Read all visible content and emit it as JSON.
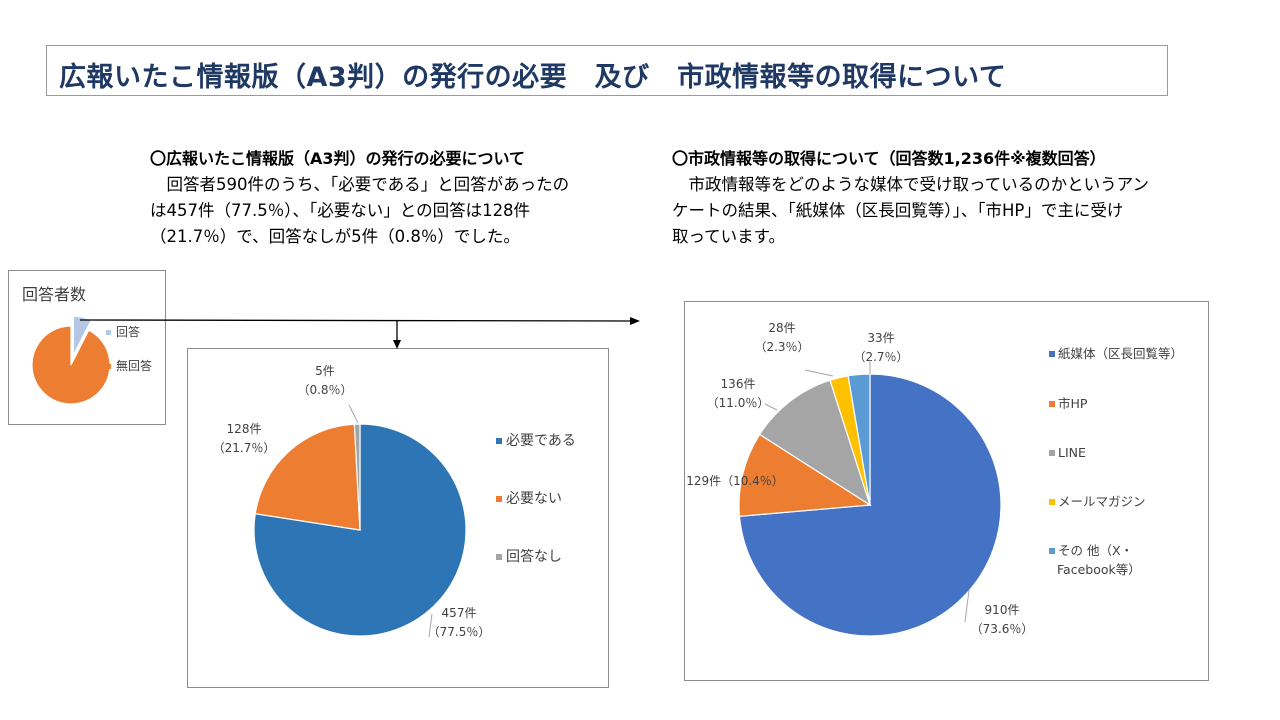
{
  "title": "広報いたこ情報版（A3判）の発行の必要　及び　市政情報等の取得について",
  "left_text": {
    "heading": "〇広報いたこ情報版（A3判）の発行の必要について",
    "lines": [
      "　回答者590件のうち、「必要である」と回答があったの",
      "は457件（77.5％）、「必要ない」との回答は128件",
      "（21.7％）で、回答なしが5件（0.8％）でした。"
    ]
  },
  "right_text": {
    "heading": "〇市政情報等の取得について（回答数1,236件※複数回答）",
    "lines": [
      "　市政情報等をどのような媒体で受け取っているのかというアン",
      "ケートの結果、「紙媒体（区長回覧等）」、「市HP」で主に受け",
      "取っています。"
    ]
  },
  "chart_data": [
    {
      "type": "pie",
      "title": "回答者数",
      "series": [
        {
          "name": "回答",
          "value": 590,
          "color": "#b4c7e7",
          "exploded": true
        },
        {
          "name": "無回答",
          "value": 7280,
          "color": "#ed7d31"
        }
      ]
    },
    {
      "type": "pie",
      "title": "",
      "series": [
        {
          "name": "必要である",
          "value": 457,
          "color": "#2e75b6",
          "label_lines": [
            "457件",
            "（77.5％）"
          ]
        },
        {
          "name": "必要ない",
          "value": 128,
          "color": "#ed7d31",
          "label_lines": [
            "128件",
            "（21.7％）"
          ]
        },
        {
          "name": "回答なし",
          "value": 5,
          "color": "#a5a5a5",
          "label_lines": [
            "5件",
            "（0.8％）"
          ]
        }
      ],
      "legend": "right"
    },
    {
      "type": "pie",
      "title": "",
      "series": [
        {
          "name": "紙媒体（区長回覧等）",
          "value": 910,
          "color": "#4472c4",
          "label_lines": [
            "910件",
            "（73.6％）"
          ]
        },
        {
          "name": "市HP",
          "value": 129,
          "color": "#ed7d31",
          "label_lines": [
            "129件（10.4％）"
          ]
        },
        {
          "name": "LINE",
          "value": 136,
          "color": "#a5a5a5",
          "label_lines": [
            "136件",
            "（11.0％）"
          ]
        },
        {
          "name": "メールマガジン",
          "value": 28,
          "color": "#ffc000",
          "label_lines": [
            "28件",
            "（2.3％）"
          ]
        },
        {
          "name": "その 他（X・Facebook等）",
          "legend_lines": [
            "その 他（X・",
            "Facebook等）"
          ],
          "value": 33,
          "color": "#5b9bd5",
          "label_lines": [
            "33件",
            "（2.7％）"
          ]
        }
      ],
      "legend": "right"
    }
  ]
}
